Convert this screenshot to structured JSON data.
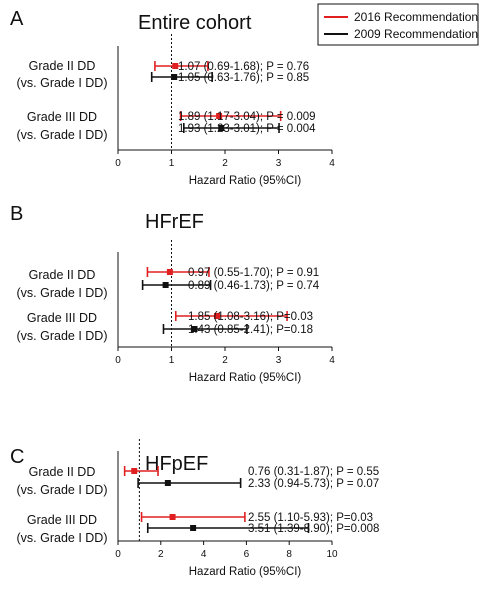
{
  "legend": {
    "items": [
      {
        "label": "2016 Recommendation",
        "color": "#e02020"
      },
      {
        "label": "2009 Recommendation",
        "color": "#111111"
      }
    ]
  },
  "chart_data": [
    {
      "type": "forest",
      "panel": "A",
      "title": "Entire cohort",
      "xlabel": "Hazard Ratio (95%CI)",
      "xlim": [
        0,
        4
      ],
      "xticks": [
        0,
        1,
        2,
        3,
        4
      ],
      "reference_line": 1,
      "rows": [
        {
          "label": [
            "Grade II DD",
            "(vs. Grade I DD)"
          ],
          "estimates": [
            {
              "series": "2016 Recommendation",
              "hr": 1.07,
              "lo": 0.69,
              "hi": 1.68,
              "text": "1.07 (0.69-1.68); P = 0.76"
            },
            {
              "series": "2009 Recommendation",
              "hr": 1.05,
              "lo": 0.63,
              "hi": 1.76,
              "text": "1.05 (0.63-1.76); P = 0.85"
            }
          ]
        },
        {
          "label": [
            "Grade III DD",
            "(vs. Grade I DD)"
          ],
          "estimates": [
            {
              "series": "2016 Recommendation",
              "hr": 1.89,
              "lo": 1.17,
              "hi": 3.04,
              "text": "1.89 (1.17-3.04); P = 0.009"
            },
            {
              "series": "2009 Recommendation",
              "hr": 1.93,
              "lo": 1.23,
              "hi": 3.01,
              "text": "1.93 (1.23-3.01); P = 0.004"
            }
          ]
        }
      ]
    },
    {
      "type": "forest",
      "panel": "B",
      "title": "HFrEF",
      "xlabel": "Hazard Ratio (95%CI)",
      "xlim": [
        0,
        4
      ],
      "xticks": [
        0,
        1,
        2,
        3,
        4
      ],
      "reference_line": 1,
      "rows": [
        {
          "label": [
            "Grade II DD",
            "(vs. Grade I DD)"
          ],
          "estimates": [
            {
              "series": "2016 Recommendation",
              "hr": 0.97,
              "lo": 0.55,
              "hi": 1.7,
              "text": "0.97 (0.55-1.70); P = 0.91"
            },
            {
              "series": "2009 Recommendation",
              "hr": 0.89,
              "lo": 0.46,
              "hi": 1.73,
              "text": "0.89 (0.46-1.73); P = 0.74"
            }
          ]
        },
        {
          "label": [
            "Grade III DD",
            "(vs. Grade I DD)"
          ],
          "estimates": [
            {
              "series": "2016 Recommendation",
              "hr": 1.85,
              "lo": 1.08,
              "hi": 3.16,
              "text": "1.85 (1.08-3.16); P=0.03"
            },
            {
              "series": "2009 Recommendation",
              "hr": 1.43,
              "lo": 0.85,
              "hi": 2.41,
              "text": "1.43 (0.85-2.41); P=0.18"
            }
          ]
        }
      ]
    },
    {
      "type": "forest",
      "panel": "C",
      "title": "HFpEF",
      "xlabel": "Hazard Ratio (95%CI)",
      "xlim": [
        0,
        10
      ],
      "xticks": [
        0,
        2,
        4,
        6,
        8,
        10
      ],
      "reference_line": 1,
      "rows": [
        {
          "label": [
            "Grade II DD",
            "(vs. Grade I DD)"
          ],
          "estimates": [
            {
              "series": "2016 Recommendation",
              "hr": 0.76,
              "lo": 0.31,
              "hi": 1.87,
              "text": "0.76 (0.31-1.87); P = 0.55"
            },
            {
              "series": "2009 Recommendation",
              "hr": 2.33,
              "lo": 0.94,
              "hi": 5.73,
              "text": "2.33 (0.94-5.73); P = 0.07"
            }
          ]
        },
        {
          "label": [
            "Grade III DD",
            "(vs. Grade I DD)"
          ],
          "estimates": [
            {
              "series": "2016 Recommendation",
              "hr": 2.55,
              "lo": 1.1,
              "hi": 5.93,
              "text": "2.55 (1.10-5.93); P=0.03"
            },
            {
              "series": "2009 Recommendation",
              "hr": 3.51,
              "lo": 1.39,
              "hi": 8.9,
              "text": "3.51 (1.39-8.90); P=0.008"
            }
          ]
        }
      ]
    }
  ]
}
